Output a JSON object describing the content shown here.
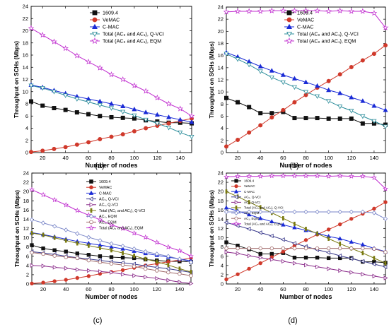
{
  "chart_data": [
    {
      "type": "line",
      "panel_label": "(a)",
      "xlabel": "Number of nodes",
      "ylabel": "Throughput on SCHs (Mbps)",
      "xlim": [
        10,
        150
      ],
      "ylim": [
        0,
        24
      ],
      "xticks": [
        20,
        40,
        60,
        80,
        100,
        120,
        140
      ],
      "yticks": [
        0,
        2,
        4,
        6,
        8,
        10,
        12,
        14,
        16,
        18,
        20,
        22,
        24
      ],
      "legend_position": "top-center",
      "x": [
        10,
        20,
        30,
        40,
        50,
        60,
        70,
        80,
        90,
        100,
        110,
        120,
        130,
        140,
        150
      ],
      "series": [
        {
          "name": "1609.4",
          "color": "#111111",
          "marker": "square-filled",
          "values": [
            8.4,
            7.7,
            7.3,
            7.0,
            6.6,
            6.3,
            6.0,
            5.8,
            5.7,
            5.6,
            5.3,
            5.1,
            4.9,
            4.9,
            4.8
          ]
        },
        {
          "name": "VeMAC",
          "color": "#d0392b",
          "marker": "circle-filled",
          "values": [
            0.1,
            0.3,
            0.6,
            0.9,
            1.3,
            1.7,
            2.2,
            2.6,
            3.0,
            3.5,
            4.0,
            4.4,
            4.8,
            5.2,
            5.6
          ]
        },
        {
          "name": "C-MAC",
          "color": "#1a2bd6",
          "marker": "triangle-filled",
          "values": [
            11.1,
            10.7,
            10.2,
            9.7,
            9.2,
            8.8,
            8.4,
            8.0,
            7.6,
            7.1,
            6.6,
            6.2,
            5.8,
            5.4,
            5.0
          ]
        },
        {
          "name": "Total (AC₀ and AC₁), Q-VCI",
          "color": "#2a8c9a",
          "marker": "triangle-down-open",
          "values": [
            11.0,
            10.6,
            10.0,
            9.4,
            8.8,
            8.3,
            7.8,
            7.3,
            6.7,
            6.1,
            5.4,
            4.8,
            4.1,
            3.3,
            2.6
          ]
        },
        {
          "name": "Total (AC₀ and AC₁), EQM",
          "color": "#c02ccf",
          "marker": "star-open",
          "values": [
            20.4,
            19.3,
            18.2,
            17.1,
            15.9,
            14.9,
            13.9,
            12.8,
            12.0,
            11.0,
            10.1,
            9.0,
            8.0,
            7.2,
            6.0
          ]
        }
      ]
    },
    {
      "type": "line",
      "panel_label": "(b)",
      "xlabel": "Number of nodes",
      "ylabel": "Throughput on SCHs (Mbps)",
      "xlim": [
        10,
        150
      ],
      "ylim": [
        0,
        24
      ],
      "xticks": [
        20,
        40,
        60,
        80,
        100,
        120,
        140
      ],
      "yticks": [
        0,
        2,
        4,
        6,
        8,
        10,
        12,
        14,
        16,
        18,
        20,
        22,
        24
      ],
      "legend_position": "top-center",
      "x": [
        10,
        20,
        30,
        40,
        50,
        60,
        70,
        80,
        90,
        100,
        110,
        120,
        130,
        140,
        150
      ],
      "series": [
        {
          "name": "1609.4",
          "color": "#111111",
          "marker": "square-filled",
          "values": [
            9.0,
            8.3,
            7.5,
            6.5,
            6.5,
            6.7,
            5.7,
            5.7,
            5.7,
            5.6,
            5.6,
            5.6,
            4.8,
            4.8,
            4.6
          ]
        },
        {
          "name": "VeMAC",
          "color": "#d0392b",
          "marker": "circle-filled",
          "values": [
            1.0,
            2.1,
            3.3,
            4.5,
            5.8,
            7.0,
            8.3,
            9.5,
            10.7,
            11.8,
            12.9,
            14.1,
            15.2,
            16.3,
            17.7
          ]
        },
        {
          "name": "C-MAC",
          "color": "#1a2bd6",
          "marker": "triangle-filled",
          "values": [
            16.5,
            15.8,
            15.0,
            14.2,
            13.5,
            12.8,
            12.2,
            11.6,
            11.0,
            10.3,
            9.8,
            9.1,
            8.5,
            7.7,
            7.0
          ]
        },
        {
          "name": "Total (AC₀ and AC₁), Q-VCI",
          "color": "#2a8c9a",
          "marker": "triangle-down-open",
          "values": [
            16.3,
            15.4,
            14.5,
            13.4,
            12.4,
            11.6,
            10.8,
            10.0,
            9.3,
            8.5,
            7.6,
            6.9,
            6.0,
            5.2,
            4.3
          ]
        },
        {
          "name": "Total (AC₀ and AC₁), EQM",
          "color": "#c02ccf",
          "marker": "star-open",
          "values": [
            23.2,
            23.3,
            23.3,
            23.3,
            23.4,
            23.4,
            23.4,
            23.4,
            23.4,
            23.3,
            23.4,
            23.3,
            23.3,
            23.0,
            20.6
          ]
        }
      ]
    },
    {
      "type": "line",
      "panel_label": "(c)",
      "xlabel": "Number of nodes",
      "ylabel": "Throughput on SCHs (Mbps)",
      "xlim": [
        10,
        150
      ],
      "ylim": [
        0,
        24
      ],
      "xticks": [
        20,
        40,
        60,
        80,
        100,
        120,
        140
      ],
      "yticks": [
        0,
        2,
        4,
        6,
        8,
        10,
        12,
        14,
        16,
        18,
        20,
        22,
        24
      ],
      "legend_position": "top-right",
      "x": [
        10,
        20,
        30,
        40,
        50,
        60,
        70,
        80,
        90,
        100,
        110,
        120,
        130,
        140,
        150
      ],
      "series": [
        {
          "name": "1609.4",
          "color": "#111111",
          "marker": "square-filled",
          "values": [
            8.4,
            7.7,
            7.3,
            7.0,
            6.6,
            6.3,
            6.0,
            5.8,
            5.7,
            5.6,
            5.3,
            5.1,
            4.9,
            4.9,
            4.8
          ]
        },
        {
          "name": "VeMAC",
          "color": "#d0392b",
          "marker": "circle-filled",
          "values": [
            0.1,
            0.3,
            0.6,
            0.9,
            1.3,
            1.7,
            2.2,
            2.6,
            3.0,
            3.5,
            4.0,
            4.4,
            4.8,
            5.2,
            5.6
          ]
        },
        {
          "name": "C-MAC",
          "color": "#1a2bd6",
          "marker": "triangle-filled",
          "values": [
            11.1,
            10.7,
            10.2,
            9.7,
            9.2,
            8.8,
            8.4,
            8.0,
            7.6,
            7.1,
            6.6,
            6.2,
            5.8,
            5.4,
            5.0
          ]
        },
        {
          "name": "AC₀, Q-VCI",
          "color": "#3a3a8c",
          "marker": "triangle-left-open",
          "values": [
            7.0,
            6.7,
            6.4,
            6.0,
            5.7,
            5.4,
            5.1,
            4.8,
            4.6,
            4.3,
            3.9,
            3.6,
            3.3,
            2.9,
            2.5
          ]
        },
        {
          "name": "AC₁, Q-VCI",
          "color": "#8a2a8a",
          "marker": "triangle-right-open",
          "values": [
            4.0,
            3.9,
            3.6,
            3.4,
            3.1,
            2.9,
            2.7,
            2.5,
            2.1,
            1.8,
            1.5,
            1.2,
            0.8,
            0.4,
            0.1
          ]
        },
        {
          "name": "Total (AC₀ and AC₁), Q-VCI",
          "color": "#7a7a10",
          "marker": "bar-filled",
          "values": [
            11.0,
            10.6,
            10.0,
            9.4,
            8.8,
            8.3,
            7.8,
            7.3,
            6.7,
            6.1,
            5.4,
            4.8,
            4.1,
            3.3,
            2.6
          ]
        },
        {
          "name": "AC₀, EQM",
          "color": "#7a86c8",
          "marker": "diamond-open",
          "values": [
            13.9,
            13.2,
            12.5,
            11.7,
            10.9,
            10.1,
            9.4,
            8.7,
            8.2,
            7.6,
            7.0,
            6.5,
            6.0,
            5.4,
            4.7
          ]
        },
        {
          "name": "AC₁, EQM",
          "color": "#a06a6a",
          "marker": "circle-open",
          "values": [
            6.8,
            6.5,
            6.1,
            5.8,
            5.6,
            5.1,
            4.7,
            4.4,
            4.1,
            3.8,
            3.3,
            2.9,
            2.5,
            2.2,
            1.8
          ]
        },
        {
          "name": "Total (AC₀ and AC₁), EQM",
          "color": "#c02ccf",
          "marker": "star-open",
          "values": [
            20.4,
            19.3,
            18.2,
            17.1,
            15.9,
            14.9,
            13.9,
            12.8,
            12.0,
            11.0,
            10.1,
            9.0,
            8.0,
            7.2,
            6.0
          ]
        }
      ]
    },
    {
      "type": "line",
      "panel_label": "(d)",
      "xlabel": "Number of nodes",
      "ylabel": "Throughput on SCHs (Mbps)",
      "xlim": [
        10,
        150
      ],
      "ylim": [
        0,
        24
      ],
      "xticks": [
        20,
        40,
        60,
        80,
        100,
        120,
        140
      ],
      "yticks": [
        0,
        2,
        4,
        6,
        8,
        10,
        12,
        14,
        16,
        18,
        20,
        22,
        24
      ],
      "legend_position": "top-left",
      "x": [
        10,
        20,
        30,
        40,
        50,
        60,
        70,
        80,
        90,
        100,
        110,
        120,
        130,
        140,
        150
      ],
      "series": [
        {
          "name": "1609.4",
          "color": "#111111",
          "marker": "square-filled",
          "values": [
            9.0,
            8.3,
            7.5,
            6.5,
            6.5,
            6.7,
            5.7,
            5.7,
            5.7,
            5.6,
            5.6,
            5.6,
            4.8,
            4.8,
            4.6
          ]
        },
        {
          "name": "VeMAC",
          "color": "#d0392b",
          "marker": "circle-filled",
          "values": [
            1.0,
            2.1,
            3.3,
            4.5,
            5.8,
            7.0,
            8.3,
            9.5,
            10.7,
            11.8,
            12.9,
            14.1,
            15.2,
            16.3,
            17.7
          ]
        },
        {
          "name": "C-MAC",
          "color": "#1a2bd6",
          "marker": "triangle-filled",
          "values": [
            16.5,
            15.8,
            15.0,
            14.2,
            13.5,
            12.8,
            12.2,
            11.6,
            11.0,
            10.3,
            9.8,
            9.1,
            8.5,
            7.7,
            7.0
          ]
        },
        {
          "name": "AC₀, Q-VCI",
          "color": "#3a3a8c",
          "marker": "triangle-left-open",
          "values": [
            13.3,
            12.6,
            11.9,
            11.1,
            10.4,
            9.6,
            8.8,
            8.1,
            7.4,
            6.8,
            6.1,
            5.5,
            4.9,
            4.3,
            3.7
          ]
        },
        {
          "name": "AC₁, Q-VCI",
          "color": "#8a2a8a",
          "marker": "triangle-right-open",
          "values": [
            6.9,
            6.6,
            6.1,
            5.7,
            5.3,
            4.9,
            4.5,
            4.1,
            3.7,
            3.3,
            2.9,
            2.5,
            2.1,
            1.7,
            1.3
          ]
        },
        {
          "name": "Total (AC₀ and AC₁), Q-VCI",
          "color": "#7a7a10",
          "marker": "bar-filled",
          "values": [
            20.0,
            18.9,
            17.7,
            16.6,
            15.4,
            14.2,
            13.0,
            11.9,
            10.9,
            9.8,
            8.7,
            7.7,
            6.7,
            5.6,
            4.5
          ]
        },
        {
          "name": "AC₀, EQM",
          "color": "#7a86c8",
          "marker": "diamond-open",
          "values": [
            15.6,
            15.6,
            15.6,
            15.6,
            15.6,
            15.6,
            15.6,
            15.6,
            15.6,
            15.6,
            15.6,
            15.6,
            15.6,
            15.4,
            14.1
          ]
        },
        {
          "name": "AC₁, EQM",
          "color": "#a06a6a",
          "marker": "circle-open",
          "values": [
            7.7,
            7.7,
            7.7,
            7.7,
            7.7,
            7.7,
            7.7,
            7.7,
            7.7,
            7.7,
            7.7,
            7.7,
            7.7,
            7.6,
            6.9
          ]
        },
        {
          "name": "Total (AC₀ and AC₁), EQM",
          "color": "#c02ccf",
          "marker": "star-open",
          "values": [
            23.2,
            23.3,
            23.3,
            23.3,
            23.4,
            23.4,
            23.4,
            23.4,
            23.4,
            23.3,
            23.4,
            23.3,
            23.3,
            23.0,
            20.6
          ]
        }
      ]
    }
  ]
}
